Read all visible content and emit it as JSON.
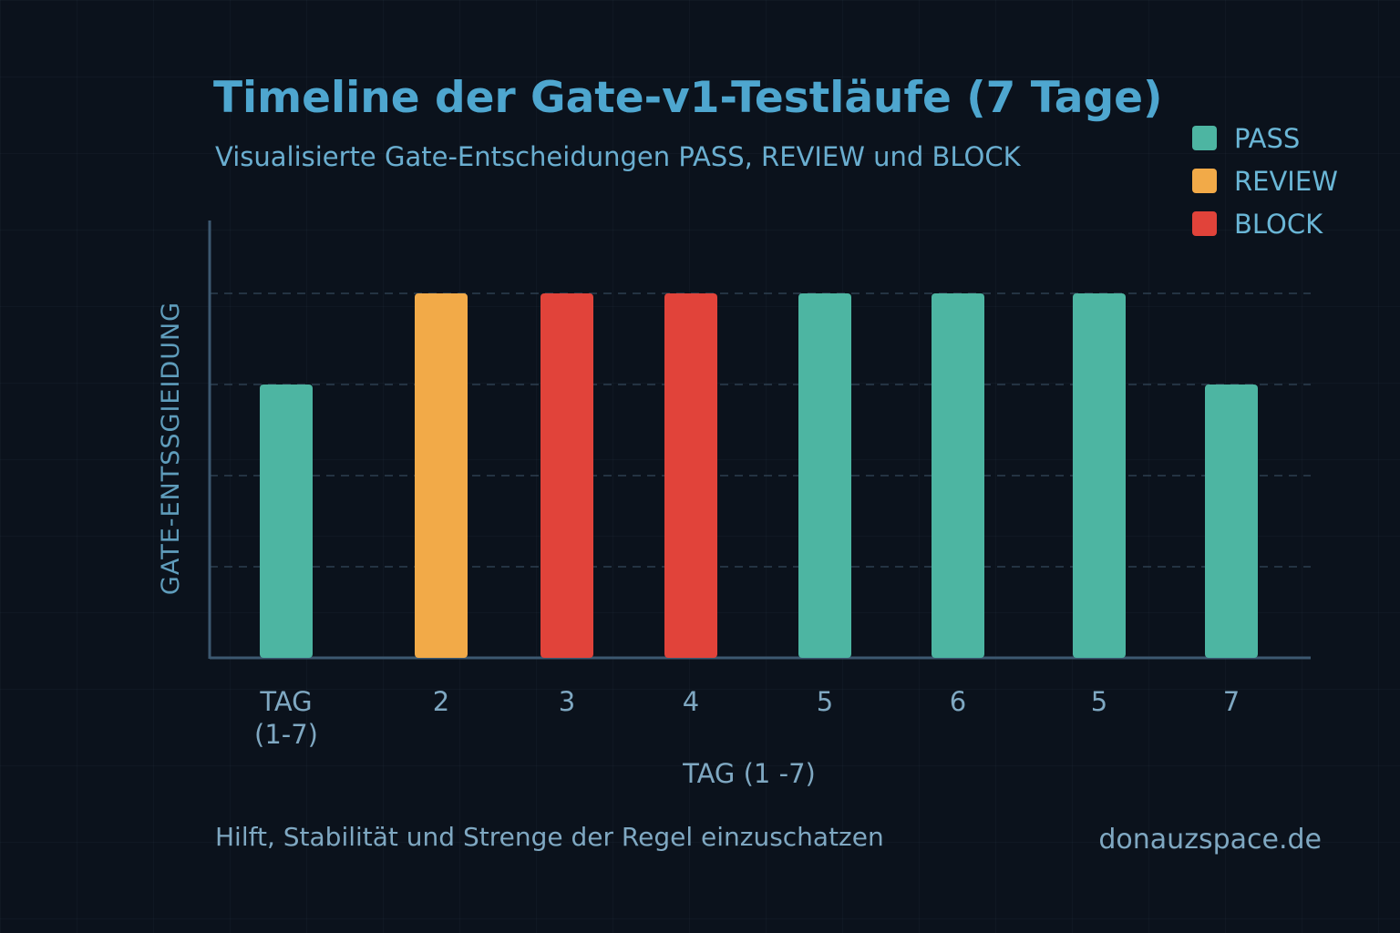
{
  "title": "Timeline der Gate-v1-Testläufe (7 Tage)",
  "subtitle": "Visualisierte Gate-Entscheidungen PASS, REVIEW und BLOCK",
  "footer": "Hilft, Stabilität und Strenge der Regel einzuschatzen",
  "site": "donauzspace.de",
  "colors": {
    "PASS": "#4db5a2",
    "REVIEW": "#f2aa48",
    "BLOCK": "#e1433a",
    "axis": "#3c5870",
    "text": "#7fa8c2"
  },
  "chart_data": {
    "type": "bar",
    "title": "Timeline der Gate-v1-Testläufe (7 Tage)",
    "xlabel": "TAG (1 -7)",
    "ylabel": "GATE-ENTSSGIEIDUNG",
    "categories": [
      "TAG\n(1-7)",
      "2",
      "3",
      "4",
      "5",
      "6",
      "5",
      "7"
    ],
    "values": [
      3,
      4,
      4,
      4,
      4,
      4,
      4,
      3
    ],
    "status": [
      "PASS",
      "REVIEW",
      "BLOCK",
      "BLOCK",
      "PASS",
      "PASS",
      "PASS",
      "PASS"
    ],
    "ylim": [
      0,
      4.8
    ],
    "grid": true,
    "legend": {
      "placement": "top-right",
      "entries": [
        "PASS",
        "REVIEW",
        "BLOCK"
      ]
    }
  }
}
